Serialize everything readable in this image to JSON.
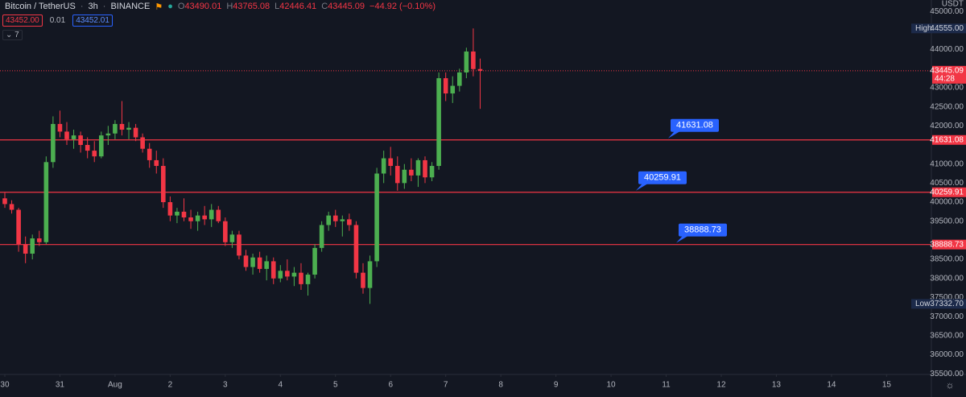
{
  "header": {
    "symbol": "Bitcoin / TetherUS",
    "interval": "3h",
    "exchange": "BINANCE",
    "sell": "43452.00",
    "spread": "0.01",
    "buy": "43452.01",
    "indicators": "7",
    "change": "−44.92 (−0.10%)",
    "ohlc_letters": [
      "O",
      "H",
      "L",
      "C"
    ]
  },
  "chart_data": {
    "type": "candlestick",
    "up_color": "#4caf50",
    "down_color": "#f23645",
    "axis_unit": "USDT",
    "countdown": "44:28",
    "open": [
      40100,
      39950,
      39800,
      38900,
      38650,
      39050,
      38950,
      41050,
      42050,
      41850,
      41650,
      41750,
      41500,
      41350,
      41200,
      41750,
      41800,
      42050,
      41900,
      41950,
      41700,
      41400,
      41100,
      40950,
      40000,
      39650,
      39750,
      39600,
      39500,
      39650,
      39550,
      39800,
      39500,
      38950,
      39150,
      38600,
      38300,
      38550,
      38250,
      38450,
      38000,
      38200,
      38050,
      38150,
      37850,
      38100,
      38800,
      39400,
      39650,
      39500,
      39550,
      39400,
      38150,
      37750,
      38450,
      40750,
      41150,
      40950,
      40500,
      40850,
      40700,
      41100,
      40650,
      40950,
      43250,
      42850,
      43050,
      43400,
      43950,
      43490.01
    ],
    "high": [
      40250,
      40050,
      39850,
      39100,
      39150,
      39250,
      41200,
      42250,
      42400,
      42100,
      41900,
      41850,
      41700,
      41600,
      41850,
      42000,
      42150,
      42650,
      42100,
      42050,
      41800,
      41550,
      41350,
      41150,
      40150,
      39850,
      40100,
      39800,
      39750,
      39900,
      39950,
      39900,
      39600,
      39250,
      39250,
      38750,
      38650,
      38700,
      38600,
      38550,
      38350,
      38500,
      38300,
      38400,
      38150,
      38900,
      39500,
      39750,
      39800,
      39650,
      39700,
      39500,
      38400,
      38600,
      40900,
      41350,
      41450,
      41200,
      41000,
      41150,
      41150,
      41200,
      41050,
      43400,
      43400,
      43300,
      43500,
      44050,
      44555,
      43765.08
    ],
    "low": [
      39850,
      39700,
      38700,
      38400,
      38500,
      38850,
      38900,
      40900,
      41700,
      41500,
      41400,
      41300,
      41150,
      41050,
      41150,
      41500,
      41650,
      41750,
      41650,
      41600,
      41300,
      40900,
      40750,
      39850,
      39500,
      39450,
      39500,
      39300,
      39250,
      39400,
      39350,
      39450,
      38850,
      38800,
      38500,
      38200,
      38100,
      38150,
      37950,
      37850,
      37900,
      37950,
      37800,
      37700,
      37550,
      38000,
      38700,
      39250,
      39350,
      39100,
      39250,
      38000,
      37600,
      37332.7,
      38300,
      40500,
      40700,
      40300,
      40350,
      40550,
      40400,
      40500,
      40550,
      40850,
      42650,
      42600,
      42900,
      43250,
      43300,
      42446.41
    ],
    "close": [
      39950,
      39800,
      38900,
      38650,
      39050,
      38950,
      41050,
      42050,
      41850,
      41650,
      41750,
      41500,
      41350,
      41200,
      41750,
      41800,
      42050,
      41900,
      41950,
      41700,
      41400,
      41100,
      40950,
      40000,
      39650,
      39750,
      39600,
      39500,
      39650,
      39550,
      39800,
      39500,
      38950,
      39150,
      38600,
      38300,
      38550,
      38250,
      38450,
      38000,
      38200,
      38050,
      38150,
      37850,
      38100,
      38800,
      39400,
      39650,
      39500,
      39550,
      39400,
      38150,
      37750,
      38450,
      40750,
      41150,
      40950,
      40500,
      40850,
      40700,
      41100,
      40650,
      40950,
      43250,
      42850,
      43050,
      43400,
      43950,
      43490.01,
      43445.09
    ],
    "ylim": [
      35200,
      45300
    ],
    "yticks": [
      {
        "value": 45000,
        "label": "45000.00"
      },
      {
        "value": 44000,
        "label": "44000.00"
      },
      {
        "value": 43000,
        "label": "43000.00"
      },
      {
        "value": 42500,
        "label": "42500.00"
      },
      {
        "value": 42000,
        "label": "42000.00"
      },
      {
        "value": 41000,
        "label": "41000.00"
      },
      {
        "value": 40500,
        "label": "40500.00"
      },
      {
        "value": 40000,
        "label": "40000.00"
      },
      {
        "value": 39500,
        "label": "39500.00"
      },
      {
        "value": 38500,
        "label": "38500.00"
      },
      {
        "value": 38000,
        "label": "38000.00"
      },
      {
        "value": 37500,
        "label": "37500.00"
      },
      {
        "value": 37000,
        "label": "37000.00"
      },
      {
        "value": 36500,
        "label": "36500.00"
      },
      {
        "value": 36000,
        "label": "36000.00"
      },
      {
        "value": 35500,
        "label": "35500.00"
      }
    ],
    "xlim": [
      -0.7,
      134.5
    ],
    "xticks": [
      {
        "value": 0,
        "label": "30"
      },
      {
        "value": 8,
        "label": "31"
      },
      {
        "value": 16,
        "label": "Aug"
      },
      {
        "value": 24,
        "label": "2"
      },
      {
        "value": 32,
        "label": "3"
      },
      {
        "value": 40,
        "label": "4"
      },
      {
        "value": 48,
        "label": "5"
      },
      {
        "value": 56,
        "label": "6"
      },
      {
        "value": 64,
        "label": "7"
      },
      {
        "value": 72,
        "label": "8"
      },
      {
        "value": 80,
        "label": "9"
      },
      {
        "value": 88,
        "label": "10"
      },
      {
        "value": 96,
        "label": "11"
      },
      {
        "value": 104,
        "label": "12"
      },
      {
        "value": 112,
        "label": "13"
      },
      {
        "value": 120,
        "label": "14"
      },
      {
        "value": 128,
        "label": "15"
      }
    ],
    "levels": [
      41631.08,
      40259.91,
      38888.73
    ],
    "level_color": "#f23645",
    "callout_color": "#2962ff",
    "high_marker": {
      "name": "High",
      "value": 44555,
      "value_label": "44555.00"
    },
    "low_marker": {
      "name": "Low",
      "value": 37332.7,
      "value_label": "37332.70"
    },
    "grid": false
  }
}
